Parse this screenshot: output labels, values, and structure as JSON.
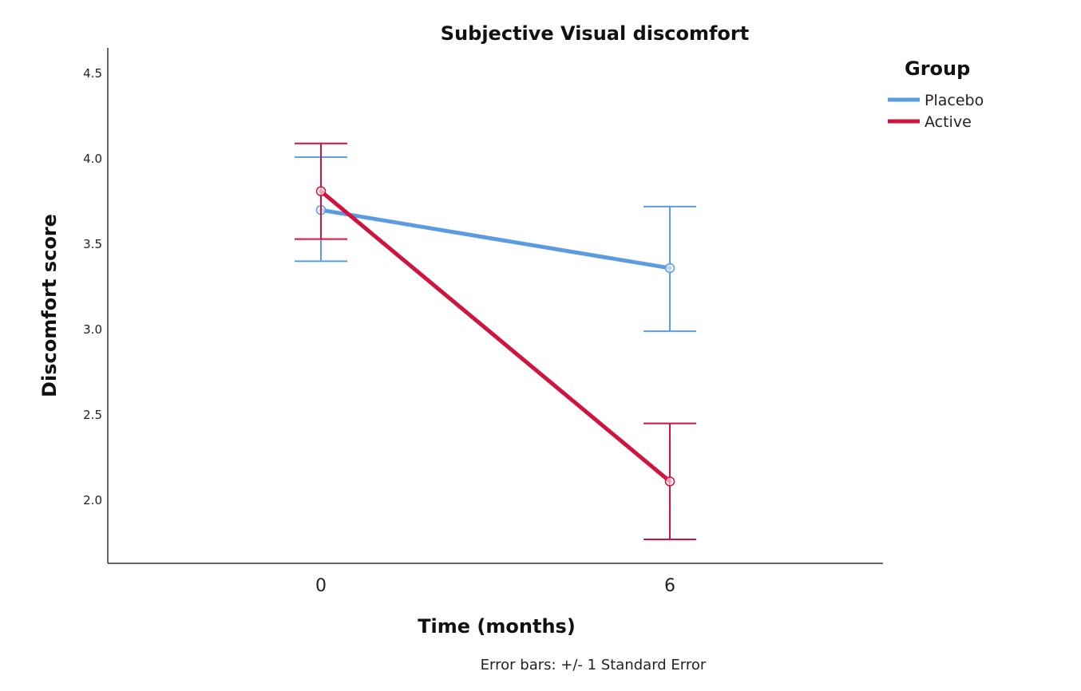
{
  "chart_data": {
    "type": "line",
    "title": "Subjective Visual discomfort",
    "xlabel": "Time (months)",
    "ylabel": "Discomfort score",
    "categories": [
      "0",
      "6"
    ],
    "y_ticks": [
      "2.0",
      "2.5",
      "3.0",
      "3.5",
      "4.0",
      "4.5"
    ],
    "ylim": [
      1.63,
      4.65
    ],
    "grid": false,
    "legend": {
      "title": "Group",
      "position": "top-right"
    },
    "series": [
      {
        "name": "Placebo",
        "color": "#5b9be0",
        "values": [
          3.7,
          3.36
        ],
        "error_low": [
          3.4,
          2.99
        ],
        "error_high": [
          4.01,
          3.72
        ]
      },
      {
        "name": "Active",
        "color": "#d1143f",
        "values": [
          3.81,
          2.11
        ],
        "error_low": [
          3.53,
          1.77
        ],
        "error_high": [
          4.09,
          2.45
        ]
      }
    ],
    "footnote": "Error bars: +/- 1 Standard Error"
  }
}
